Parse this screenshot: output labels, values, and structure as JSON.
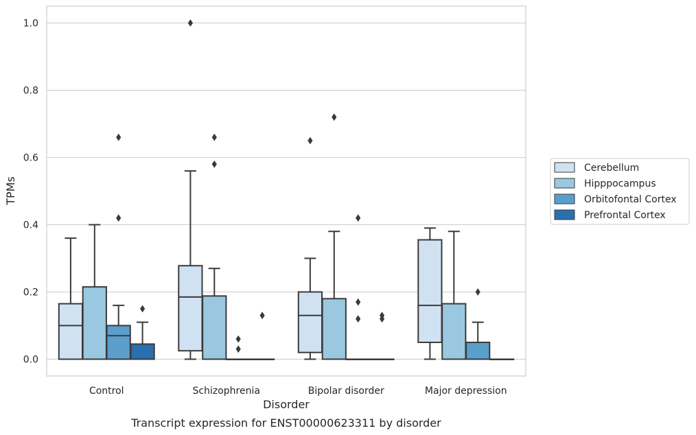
{
  "chart_data": {
    "type": "box",
    "title": "",
    "caption": "Transcript expression for ENST00000623311 by disorder",
    "xlabel": "Disorder",
    "ylabel": "TPMs",
    "ylim": [
      -0.05,
      1.05
    ],
    "yticks": [
      0.0,
      0.2,
      0.4,
      0.6,
      0.8,
      1.0
    ],
    "ytick_labels": [
      "0.0",
      "0.2",
      "0.4",
      "0.6",
      "0.8",
      "1.0"
    ],
    "grid": "horizontal",
    "legend_position": "right",
    "categories": [
      "Control",
      "Schizophrenia",
      "Bipolar disorder",
      "Major depression"
    ],
    "series": [
      {
        "name": "Cerebellum",
        "color": "#d0e1f2",
        "boxes": [
          {
            "min": 0.0,
            "q1": 0.0,
            "median": 0.1,
            "q3": 0.165,
            "max": 0.36,
            "outliers": []
          },
          {
            "min": 0.0,
            "q1": 0.025,
            "median": 0.185,
            "q3": 0.278,
            "max": 0.56,
            "outliers": [
              1.0
            ]
          },
          {
            "min": 0.0,
            "q1": 0.02,
            "median": 0.13,
            "q3": 0.2,
            "max": 0.3,
            "outliers": [
              0.65
            ]
          },
          {
            "min": 0.0,
            "q1": 0.05,
            "median": 0.16,
            "q3": 0.355,
            "max": 0.39,
            "outliers": []
          }
        ]
      },
      {
        "name": "Hipppocampus",
        "color": "#9ac8e0",
        "boxes": [
          {
            "min": 0.0,
            "q1": 0.0,
            "median": 0.0,
            "q3": 0.215,
            "max": 0.4,
            "outliers": []
          },
          {
            "min": 0.0,
            "q1": 0.0,
            "median": 0.0,
            "q3": 0.188,
            "max": 0.27,
            "outliers": [
              0.58,
              0.66
            ]
          },
          {
            "min": 0.0,
            "q1": 0.0,
            "median": 0.0,
            "q3": 0.18,
            "max": 0.38,
            "outliers": [
              0.72
            ]
          },
          {
            "min": 0.0,
            "q1": 0.0,
            "median": 0.0,
            "q3": 0.165,
            "max": 0.38,
            "outliers": []
          }
        ]
      },
      {
        "name": "Orbitofontal Cortex",
        "color": "#5a9ecc",
        "boxes": [
          {
            "min": 0.0,
            "q1": 0.0,
            "median": 0.07,
            "q3": 0.1,
            "max": 0.16,
            "outliers": [
              0.42,
              0.66
            ]
          },
          {
            "min": 0.0,
            "q1": 0.0,
            "median": 0.0,
            "q3": 0.0,
            "max": 0.0,
            "outliers": [
              0.03,
              0.06
            ]
          },
          {
            "min": 0.0,
            "q1": 0.0,
            "median": 0.0,
            "q3": 0.0,
            "max": 0.0,
            "outliers": [
              0.12,
              0.17,
              0.42
            ]
          },
          {
            "min": 0.0,
            "q1": 0.0,
            "median": 0.0,
            "q3": 0.05,
            "max": 0.11,
            "outliers": [
              0.2
            ]
          }
        ]
      },
      {
        "name": "Prefrontal Cortex",
        "color": "#2a70b0",
        "boxes": [
          {
            "min": 0.0,
            "q1": 0.0,
            "median": 0.0,
            "q3": 0.045,
            "max": 0.11,
            "outliers": [
              0.15
            ]
          },
          {
            "min": 0.0,
            "q1": 0.0,
            "median": 0.0,
            "q3": 0.0,
            "max": 0.0,
            "outliers": [
              0.13
            ]
          },
          {
            "min": 0.0,
            "q1": 0.0,
            "median": 0.0,
            "q3": 0.0,
            "max": 0.0,
            "outliers": [
              0.12,
              0.13
            ]
          },
          {
            "min": 0.0,
            "q1": 0.0,
            "median": 0.0,
            "q3": 0.0,
            "max": 0.0,
            "outliers": []
          }
        ]
      }
    ]
  }
}
